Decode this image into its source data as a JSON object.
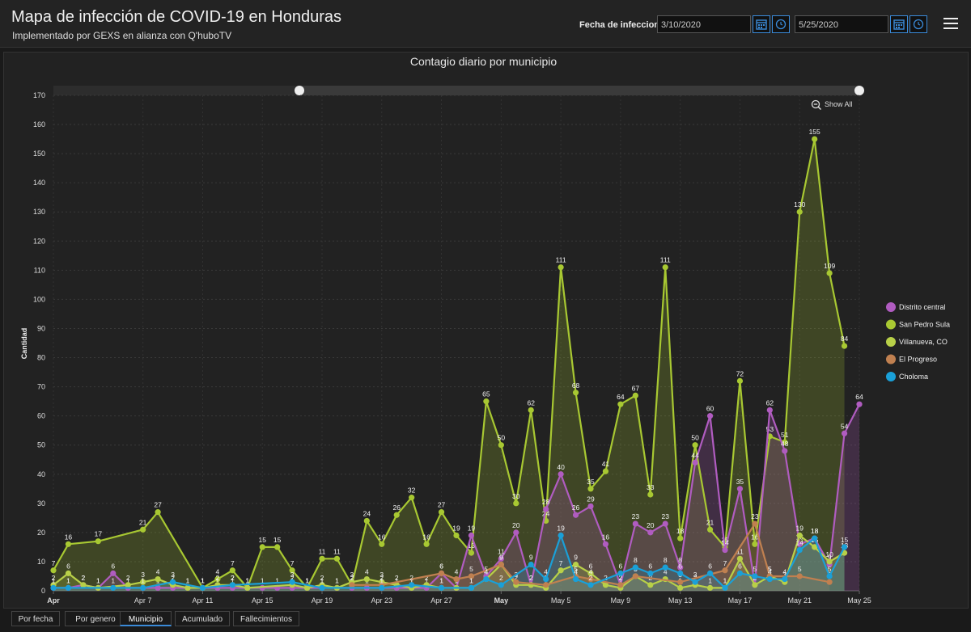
{
  "header": {
    "title": "Mapa de infección de COVID-19 en Honduras",
    "subtitle": "Implementado por GEXS en alianza con Q'huboTV",
    "date_label": "Fecha de infeccion",
    "date_from": "3/10/2020",
    "date_to": "5/25/2020"
  },
  "controls": {
    "show_all": "Show All"
  },
  "tabs": [
    {
      "label": "Por fecha"
    },
    {
      "label": "Por genero"
    },
    {
      "label": "Municipio"
    },
    {
      "label": "Acumulado"
    },
    {
      "label": "Fallecimientos"
    }
  ],
  "chart_data": {
    "type": "area",
    "title": "Contagio diario por municipio",
    "ylabel": "Cantidad",
    "ylim": [
      0,
      170
    ],
    "yticks": [
      0,
      10,
      20,
      30,
      40,
      50,
      60,
      70,
      80,
      90,
      100,
      110,
      120,
      130,
      140,
      150,
      160,
      170
    ],
    "xticks": [
      {
        "label": "Apr",
        "day": 0,
        "bold": true
      },
      {
        "label": "Apr 7",
        "day": 6
      },
      {
        "label": "Apr 11",
        "day": 10
      },
      {
        "label": "Apr 15",
        "day": 14
      },
      {
        "label": "Apr 19",
        "day": 18
      },
      {
        "label": "Apr 23",
        "day": 22
      },
      {
        "label": "Apr 27",
        "day": 26
      },
      {
        "label": "May",
        "day": 30,
        "bold": true
      },
      {
        "label": "May 5",
        "day": 34
      },
      {
        "label": "May 9",
        "day": 38
      },
      {
        "label": "May 13",
        "day": 42
      },
      {
        "label": "May 17",
        "day": 46
      },
      {
        "label": "May 21",
        "day": 50
      },
      {
        "label": "May 25",
        "day": 54
      }
    ],
    "legend_position": "right",
    "series": [
      {
        "name": "Distrito central",
        "color": "#b05cc0",
        "points": [
          [
            0,
            1
          ],
          [
            1,
            1
          ],
          [
            2,
            2
          ],
          [
            3,
            1
          ],
          [
            4,
            6
          ],
          [
            5,
            1
          ],
          [
            6,
            1
          ],
          [
            7,
            1
          ],
          [
            8,
            1
          ],
          [
            9,
            1
          ],
          [
            10,
            1
          ],
          [
            11,
            1
          ],
          [
            12,
            1
          ],
          [
            13,
            1
          ],
          [
            14,
            1
          ],
          [
            15,
            1
          ],
          [
            16,
            1
          ],
          [
            17,
            1
          ],
          [
            18,
            1
          ],
          [
            19,
            1
          ],
          [
            20,
            1
          ],
          [
            21,
            1
          ],
          [
            22,
            1
          ],
          [
            23,
            1
          ],
          [
            24,
            1
          ],
          [
            25,
            1
          ],
          [
            26,
            6
          ],
          [
            27,
            1
          ],
          [
            28,
            19
          ],
          [
            29,
            5
          ],
          [
            30,
            11
          ],
          [
            31,
            20
          ],
          [
            32,
            2
          ],
          [
            33,
            28
          ],
          [
            34,
            40
          ],
          [
            35,
            26
          ],
          [
            36,
            29
          ],
          [
            37,
            16
          ],
          [
            38,
            2
          ],
          [
            39,
            23
          ],
          [
            40,
            20
          ],
          [
            41,
            23
          ],
          [
            42,
            8
          ],
          [
            43,
            44
          ],
          [
            44,
            60
          ],
          [
            45,
            14
          ],
          [
            46,
            35
          ],
          [
            47,
            2
          ],
          [
            48,
            62
          ],
          [
            49,
            48
          ],
          [
            50,
            16
          ],
          [
            51,
            18
          ],
          [
            52,
            9
          ],
          [
            53,
            54
          ],
          [
            54,
            64
          ]
        ]
      },
      {
        "name": "San Pedro Sula",
        "color": "#a8c832",
        "points": [
          [
            0,
            7
          ],
          [
            1,
            16
          ],
          [
            3,
            17
          ],
          [
            6,
            21
          ],
          [
            7,
            27
          ],
          [
            10,
            1
          ],
          [
            11,
            4
          ],
          [
            12,
            7
          ],
          [
            13,
            1
          ],
          [
            14,
            15
          ],
          [
            15,
            15
          ],
          [
            16,
            7
          ],
          [
            17,
            1
          ],
          [
            18,
            11
          ],
          [
            19,
            11
          ],
          [
            20,
            2
          ],
          [
            21,
            24
          ],
          [
            22,
            16
          ],
          [
            23,
            26
          ],
          [
            24,
            32
          ],
          [
            25,
            16
          ],
          [
            26,
            27
          ],
          [
            27,
            19
          ],
          [
            28,
            13
          ],
          [
            29,
            65
          ],
          [
            30,
            50
          ],
          [
            31,
            30
          ],
          [
            32,
            62
          ],
          [
            33,
            24
          ],
          [
            34,
            111
          ],
          [
            35,
            68
          ],
          [
            36,
            35
          ],
          [
            37,
            41
          ],
          [
            38,
            64
          ],
          [
            39,
            67
          ],
          [
            40,
            33
          ],
          [
            41,
            111
          ],
          [
            42,
            18
          ],
          [
            43,
            50
          ],
          [
            44,
            21
          ],
          [
            45,
            15
          ],
          [
            46,
            72
          ],
          [
            47,
            16
          ],
          [
            48,
            53
          ],
          [
            49,
            51
          ],
          [
            50,
            130
          ],
          [
            51,
            155
          ],
          [
            52,
            109
          ],
          [
            53,
            84
          ]
        ]
      },
      {
        "name": "Villanueva, CO",
        "color": "#b8d048",
        "points": [
          [
            0,
            2
          ],
          [
            1,
            6
          ],
          [
            2,
            2
          ],
          [
            3,
            1
          ],
          [
            5,
            2
          ],
          [
            6,
            3
          ],
          [
            7,
            4
          ],
          [
            8,
            2
          ],
          [
            9,
            1
          ],
          [
            10,
            1
          ],
          [
            11,
            2
          ],
          [
            12,
            2
          ],
          [
            13,
            1
          ],
          [
            16,
            2
          ],
          [
            17,
            1
          ],
          [
            18,
            2
          ],
          [
            19,
            1
          ],
          [
            20,
            3
          ],
          [
            21,
            4
          ],
          [
            22,
            3
          ],
          [
            23,
            2
          ],
          [
            24,
            1
          ],
          [
            25,
            2
          ],
          [
            26,
            1
          ],
          [
            27,
            1
          ],
          [
            28,
            1
          ],
          [
            29,
            4
          ],
          [
            30,
            9
          ],
          [
            31,
            2
          ],
          [
            32,
            2
          ],
          [
            33,
            1
          ],
          [
            34,
            7
          ],
          [
            35,
            9
          ],
          [
            36,
            6
          ],
          [
            37,
            2
          ],
          [
            38,
            1
          ],
          [
            39,
            5
          ],
          [
            40,
            2
          ],
          [
            41,
            4
          ],
          [
            42,
            1
          ],
          [
            43,
            2
          ],
          [
            44,
            1
          ],
          [
            45,
            1
          ],
          [
            46,
            11
          ],
          [
            47,
            2
          ],
          [
            48,
            5
          ],
          [
            49,
            3
          ],
          [
            50,
            19
          ],
          [
            51,
            15
          ],
          [
            52,
            10
          ],
          [
            53,
            13
          ]
        ]
      },
      {
        "name": "El Progreso",
        "color": "#c08050",
        "points": [
          [
            20,
            2
          ],
          [
            22,
            2
          ],
          [
            26,
            6
          ],
          [
            27,
            4
          ],
          [
            28,
            5
          ],
          [
            30,
            9
          ],
          [
            31,
            3
          ],
          [
            33,
            2
          ],
          [
            35,
            5
          ],
          [
            36,
            4
          ],
          [
            38,
            2
          ],
          [
            39,
            5
          ],
          [
            42,
            3
          ],
          [
            45,
            7
          ],
          [
            47,
            23
          ],
          [
            48,
            5
          ],
          [
            50,
            5
          ],
          [
            52,
            3
          ]
        ]
      },
      {
        "name": "Choloma",
        "color": "#1aa0d8",
        "points": [
          [
            0,
            1
          ],
          [
            1,
            1
          ],
          [
            4,
            1
          ],
          [
            6,
            1
          ],
          [
            8,
            3
          ],
          [
            10,
            1
          ],
          [
            12,
            2
          ],
          [
            16,
            3
          ],
          [
            18,
            1
          ],
          [
            22,
            1
          ],
          [
            24,
            2
          ],
          [
            26,
            1
          ],
          [
            28,
            1
          ],
          [
            29,
            4
          ],
          [
            30,
            2
          ],
          [
            32,
            9
          ],
          [
            33,
            4
          ],
          [
            34,
            19
          ],
          [
            35,
            4
          ],
          [
            36,
            2
          ],
          [
            38,
            6
          ],
          [
            39,
            8
          ],
          [
            40,
            6
          ],
          [
            41,
            8
          ],
          [
            42,
            6
          ],
          [
            43,
            3
          ],
          [
            44,
            6
          ],
          [
            45,
            1
          ],
          [
            46,
            6
          ],
          [
            47,
            5
          ],
          [
            48,
            4
          ],
          [
            49,
            4
          ],
          [
            50,
            14
          ],
          [
            51,
            18
          ],
          [
            52,
            5
          ],
          [
            53,
            15
          ]
        ]
      }
    ]
  }
}
